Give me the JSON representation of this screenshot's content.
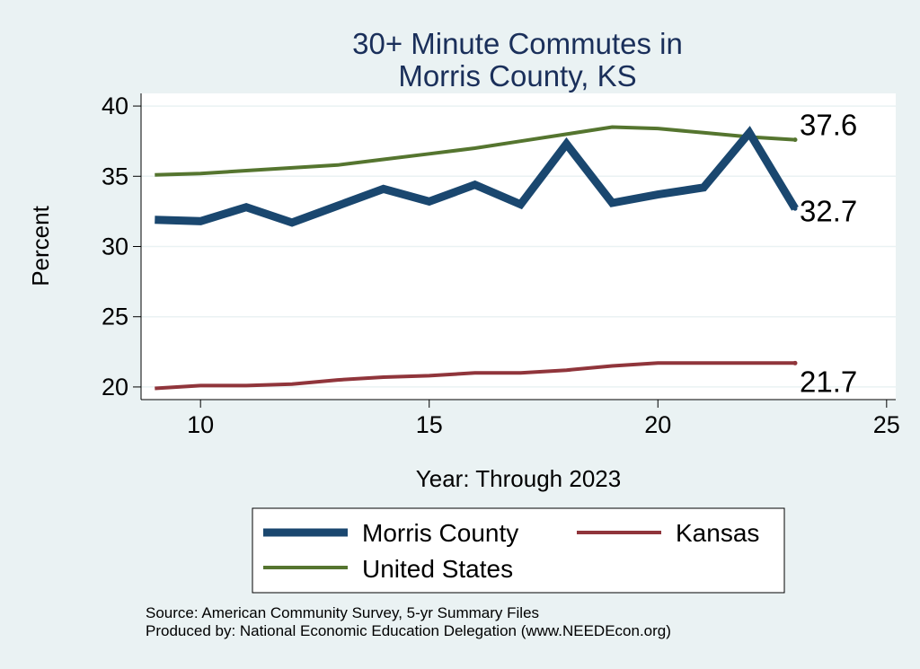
{
  "chart_data": {
    "type": "line",
    "title_lines": [
      "30+ Minute Commutes in",
      "Morris County, KS"
    ],
    "xlabel": "Year: Through 2023",
    "ylabel": "Percent",
    "xlim": [
      8.7,
      25.2
    ],
    "ylim": [
      19.1,
      40.9
    ],
    "xticks": [
      10,
      15,
      20,
      25
    ],
    "yticks": [
      20,
      25,
      30,
      35,
      40
    ],
    "grid": true,
    "x": [
      9,
      10,
      11,
      12,
      13,
      14,
      15,
      16,
      17,
      18,
      19,
      20,
      21,
      22,
      23
    ],
    "series": [
      {
        "name": "Morris County",
        "color": "#1a476f",
        "values": [
          31.9,
          31.8,
          32.8,
          31.7,
          32.9,
          34.1,
          33.2,
          34.4,
          33.0,
          37.3,
          33.1,
          33.7,
          34.2,
          38.1,
          32.7
        ],
        "end_label": "32.7"
      },
      {
        "name": "Kansas",
        "color": "#90353b",
        "values": [
          19.9,
          20.1,
          20.1,
          20.2,
          20.5,
          20.7,
          20.8,
          21.0,
          21.0,
          21.2,
          21.5,
          21.7,
          21.7,
          21.7,
          21.7
        ],
        "end_label": "21.7"
      },
      {
        "name": "United States",
        "color": "#55752f",
        "values": [
          35.1,
          35.2,
          35.4,
          35.6,
          35.8,
          36.2,
          36.6,
          37.0,
          37.5,
          38.0,
          38.5,
          38.4,
          38.1,
          37.8,
          37.6
        ],
        "end_label": "37.6"
      }
    ],
    "legend_position": "bottom",
    "legend_order": [
      "Morris County",
      "Kansas",
      "United States"
    ]
  },
  "source_note": "Source: American Community Survey, 5-yr Summary Files",
  "producer_note": "Produced by: National Economic Education Delegation (www.NEEDEcon.org)"
}
